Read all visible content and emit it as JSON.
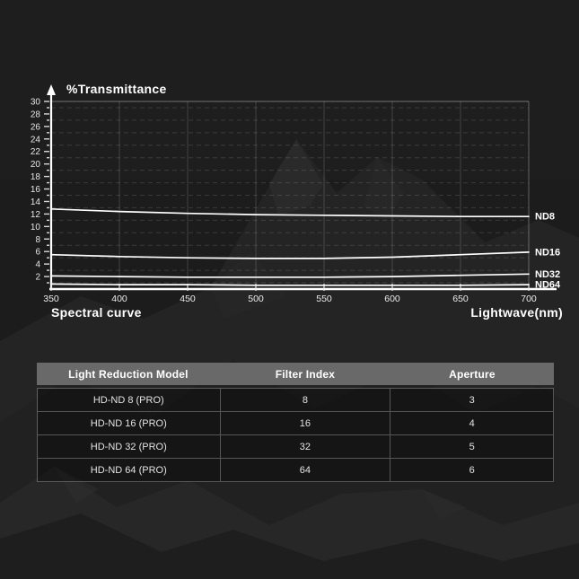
{
  "chart_data": {
    "type": "line",
    "title": "%Transmittance",
    "xlabel": "Lightwave(nm)",
    "caption": "Spectral curve",
    "x": [
      350,
      400,
      450,
      500,
      550,
      600,
      650,
      700
    ],
    "series": [
      {
        "name": "ND8",
        "values": [
          12.8,
          12.4,
          12.1,
          11.9,
          11.8,
          11.7,
          11.6,
          11.6
        ]
      },
      {
        "name": "ND16",
        "values": [
          5.5,
          5.2,
          5.0,
          4.9,
          4.9,
          5.1,
          5.5,
          5.9
        ]
      },
      {
        "name": "ND32",
        "values": [
          2.1,
          2.0,
          1.9,
          1.9,
          1.9,
          2.0,
          2.2,
          2.4
        ]
      },
      {
        "name": "ND64",
        "values": [
          0.8,
          0.7,
          0.7,
          0.6,
          0.6,
          0.6,
          0.6,
          0.7
        ]
      }
    ],
    "xlim": [
      350,
      700
    ],
    "ylim": [
      0,
      30
    ],
    "y_tick_step": 2,
    "y_minor_step": 1,
    "grid": {
      "h_dashed_values": [
        1,
        3,
        5,
        7,
        9,
        11,
        13,
        15,
        17,
        19,
        21,
        23,
        25,
        27,
        29
      ],
      "v_line_values": [
        400,
        450,
        500,
        550,
        600,
        650
      ],
      "top_border_value": 30,
      "right_border_value": 700
    },
    "line_color": "#ffffff",
    "legend_position": "right-of-line-ends"
  },
  "table": {
    "headers": [
      "Light Reduction Model",
      "Filter Index",
      "Aperture"
    ],
    "rows": [
      [
        "HD-ND 8 (PRO)",
        "8",
        "3"
      ],
      [
        "HD-ND 16 (PRO)",
        "16",
        "4"
      ],
      [
        "HD-ND 32 (PRO)",
        "32",
        "5"
      ],
      [
        "HD-ND 64 (PRO)",
        "64",
        "6"
      ]
    ],
    "header_bg": "#696969"
  },
  "colors": {
    "background": "#1d1d1d",
    "curve": "#ffffff",
    "axis": "#ffffff",
    "grid": "rgba(255,255,255,0.14)",
    "table_header_bg": "#696969"
  }
}
